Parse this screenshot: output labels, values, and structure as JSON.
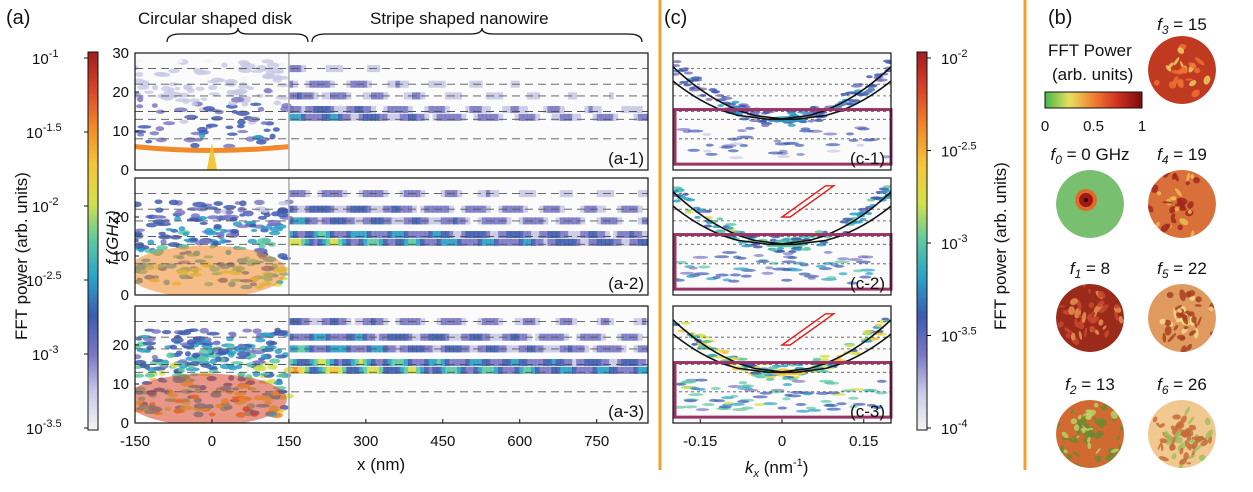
{
  "panel_letters": {
    "a": "(a)",
    "c": "(c)",
    "b": "(b)"
  },
  "annotations": {
    "disk": "Circular shaped disk",
    "wire": "Stripe shaped nanowire"
  },
  "colors": {
    "separator": "#f0a030",
    "box_magenta": "#9b3367",
    "band_black": "#111111",
    "band_red": "#e02020",
    "dashed": "#555555"
  },
  "cbar_a": {
    "label": "FFT power (arb. units)",
    "ticks": [
      {
        "exp": "-1",
        "text": "10",
        "sup": "-1"
      },
      {
        "exp": "-1.5",
        "text": "10",
        "sup": "-1.5"
      },
      {
        "exp": "-2",
        "text": "10",
        "sup": "-2"
      },
      {
        "exp": "-2.5",
        "text": "10",
        "sup": "-2.5"
      },
      {
        "exp": "-3",
        "text": "10",
        "sup": "-3"
      },
      {
        "exp": "-3.5",
        "text": "10",
        "sup": "-3.5"
      }
    ],
    "colormap": [
      "#f4f4f4",
      "#c9c9e6",
      "#7a78c4",
      "#3d5bb0",
      "#2aa0c8",
      "#5cc9a2",
      "#d4e04c",
      "#f5c63a",
      "#f28a2a",
      "#d8452a",
      "#a21b1e"
    ]
  },
  "cbar_c": {
    "label": "FFT power (arb. units)",
    "ticks": [
      {
        "text": "10",
        "sup": "-2"
      },
      {
        "text": "10",
        "sup": "-2.5"
      },
      {
        "text": "10",
        "sup": "-3"
      },
      {
        "text": "10",
        "sup": "-3.5"
      },
      {
        "text": "10",
        "sup": "-4"
      }
    ]
  },
  "cbar_b": {
    "title_line1": "FFT Power",
    "title_line2": "(arb. units)",
    "ticks": [
      "0",
      "0.5",
      "1"
    ],
    "colormap": [
      "#48b848",
      "#e8e060",
      "#f08030",
      "#d03020",
      "#7a0c0c"
    ]
  },
  "a_axes": {
    "ylabel": "f (GHz)",
    "xlabel": "x (nm)",
    "ylim": [
      0,
      30
    ],
    "yticks": [
      "30",
      "20",
      "10",
      "0"
    ],
    "xlim": [
      -150,
      850
    ],
    "xticks": [
      "-150",
      "0",
      "150",
      "300",
      "450",
      "600",
      "750"
    ],
    "panels": [
      "(a-1)",
      "(a-2)",
      "(a-3)"
    ],
    "dashed_lines_ghz": [
      8,
      13,
      15,
      19,
      22,
      26
    ]
  },
  "c_axes": {
    "xlabel": "kx (nm-1)",
    "xlim": [
      -0.2,
      0.2
    ],
    "xticks": [
      "-0.15",
      "0",
      "0.15"
    ],
    "panels": [
      "(c-1)",
      "(c-2)",
      "(c-3)"
    ]
  },
  "b_panels": [
    {
      "label": "f3 = 15",
      "sym": "f",
      "sub": "3",
      "rest": " = 15"
    },
    {
      "label": "f0 = 0 GHz",
      "sym": "f",
      "sub": "0",
      "rest": " = 0 GHz"
    },
    {
      "label": "f4 = 19",
      "sym": "f",
      "sub": "4",
      "rest": " = 19"
    },
    {
      "label": "f1 = 8",
      "sym": "f",
      "sub": "1",
      "rest": " = 8"
    },
    {
      "label": "f5 = 22",
      "sym": "f",
      "sub": "5",
      "rest": " = 22"
    },
    {
      "label": "f2 = 13",
      "sym": "f",
      "sub": "2",
      "rest": " = 13"
    },
    {
      "label": "f6 = 26",
      "sym": "f",
      "sub": "6",
      "rest": " = 26"
    }
  ],
  "chart_data": {
    "type": "heatmap",
    "a": {
      "xlabel": "x (nm)",
      "ylabel": "f (GHz)",
      "xlim": [
        -150,
        850
      ],
      "ylim": [
        0,
        30
      ],
      "xticks": [
        -150,
        0,
        150,
        300,
        450,
        600,
        750
      ],
      "yticks": [
        0,
        10,
        20,
        30
      ],
      "subpanels": [
        "(a-1)",
        "(a-2)",
        "(a-3)"
      ],
      "reference_frequencies_ghz": [
        8,
        13,
        15,
        19,
        22,
        26
      ],
      "colorbar": {
        "label": "FFT power (arb. units)",
        "scale": "log",
        "range": [
          0.000316,
          0.1
        ]
      }
    },
    "c": {
      "xlabel": "kx (nm-1)",
      "ylabel": "f (GHz)",
      "xlim": [
        -0.2,
        0.2
      ],
      "ylim": [
        0,
        30
      ],
      "xticks": [
        -0.15,
        0,
        0.15
      ],
      "subpanels": [
        "(c-1)",
        "(c-2)",
        "(c-3)"
      ],
      "colorbar": {
        "label": "FFT power (arb. units)",
        "scale": "log",
        "range": [
          0.0001,
          0.01
        ]
      }
    },
    "b": {
      "colorbar": {
        "label": "FFT Power (arb. units)",
        "range": [
          0,
          1
        ]
      },
      "mode_frequencies_ghz": [
        0,
        8,
        13,
        15,
        19,
        22,
        26
      ]
    }
  }
}
